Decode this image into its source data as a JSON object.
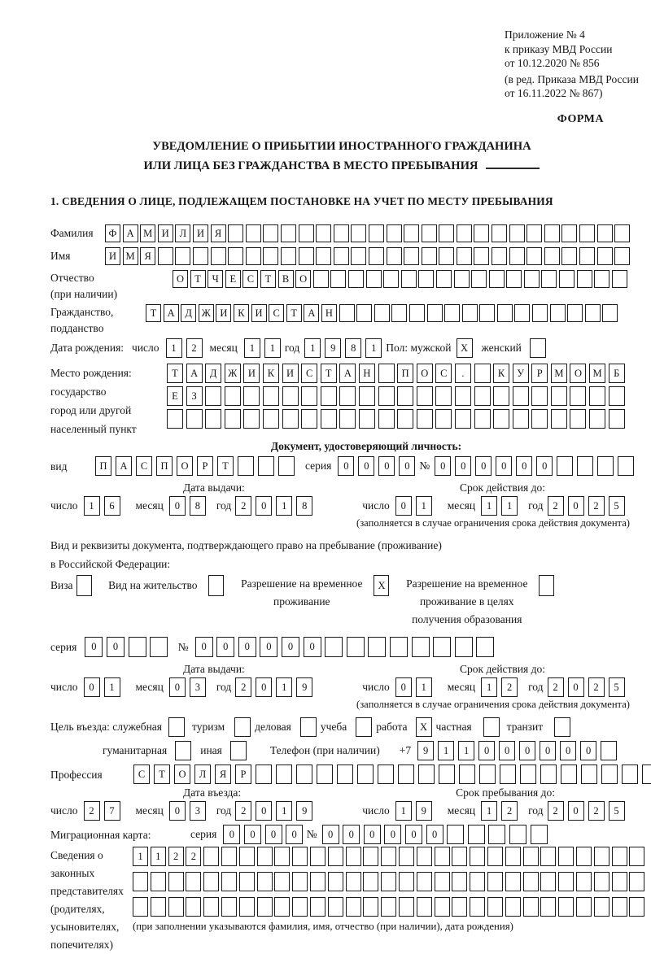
{
  "header": {
    "line1": "Приложение № 4",
    "line2": "к приказу МВД России",
    "line3": "от 10.12.2020 № 856",
    "line4": "(в ред. Приказа МВД России",
    "line5": "от 16.11.2022 № 867)",
    "forma": "ФОРМА"
  },
  "title": {
    "line1": "УВЕДОМЛЕНИЕ О ПРИБЫТИИ ИНОСТРАННОГО ГРАЖДАНИНА",
    "line2": "ИЛИ ЛИЦА БЕЗ ГРАЖДАНСТВА В МЕСТО ПРЕБЫВАНИЯ"
  },
  "section1": {
    "heading": "1. СВЕДЕНИЯ О ЛИЦЕ, ПОДЛЕЖАЩЕМ ПОСТАНОВКЕ НА УЧЕТ ПО МЕСТУ ПРЕБЫВАНИЯ"
  },
  "fields": {
    "surname": {
      "label": "Фамилия",
      "value": "ФАМИЛИЯ",
      "length": 30
    },
    "name": {
      "label": "Имя",
      "value": "ИМЯ",
      "length": 30
    },
    "patronymic": {
      "label": "Отчество",
      "label2": "(при наличии)",
      "value": "ОТЧЕСТВО",
      "length": 26
    },
    "citizenship": {
      "label": "Гражданство,",
      "label2": "подданство",
      "value": "ТАДЖИКИСТАН",
      "length": 27
    },
    "birth_date": {
      "label": "Дата рождения:",
      "day_label": "число",
      "day": {
        "value": "12",
        "length": 2
      },
      "month_label": "месяц",
      "month": {
        "value": "11",
        "length": 2
      },
      "year_label": "год",
      "year": {
        "value": "1981",
        "length": 4
      },
      "sex_label": "Пол: мужской",
      "male": {
        "value": "X",
        "length": 1
      },
      "female_label": "женский",
      "female": {
        "value": "",
        "length": 1
      }
    },
    "birth_place": {
      "label1": "Место рождения:",
      "label2": "государство",
      "label3": "город или другой",
      "label4": "населенный пункт",
      "row1": {
        "value": "ТАДЖИКИСТАН ПОС. КУРМОМБ",
        "length": 24
      },
      "row2": {
        "value": "ЕЗ",
        "length": 24
      },
      "row3": {
        "value": "",
        "length": 24
      }
    }
  },
  "identity_doc": {
    "heading": "Документ, удостоверяющий личность:",
    "kind_label": "вид",
    "kind": {
      "value": "ПАСПОРТ",
      "length": 10
    },
    "series_label": "серия",
    "series": {
      "value": "0000",
      "length": 4
    },
    "number_label": "№",
    "number": {
      "value": "000000",
      "length": 10
    },
    "issue_heading": "Дата выдачи:",
    "issue": {
      "day_label": "число",
      "day": {
        "value": "16",
        "length": 2
      },
      "month_label": "месяц",
      "month": {
        "value": "08",
        "length": 2
      },
      "year_label": "год",
      "year": {
        "value": "2018",
        "length": 4
      }
    },
    "expiry_heading": "Срок действия до:",
    "expiry": {
      "day_label": "число",
      "day": {
        "value": "01",
        "length": 2
      },
      "month_label": "месяц",
      "month": {
        "value": "11",
        "length": 2
      },
      "year_label": "год",
      "year": {
        "value": "2025",
        "length": 4
      }
    },
    "expiry_note": "(заполняется в случае ограничения срока действия документа)"
  },
  "residence_doc": {
    "line1": "Вид и реквизиты документа, подтверждающего право на пребывание (проживание)",
    "line2": "в Российской Федерации:",
    "visa_label": "Виза",
    "visa": {
      "value": "",
      "length": 1
    },
    "permit_label": "Вид на жительство",
    "permit": {
      "value": "",
      "length": 1
    },
    "temp_label1": "Разрешение на временное",
    "temp_label2": "проживание",
    "temp": {
      "value": "X",
      "length": 1
    },
    "edu_label1": "Разрешение на временное",
    "edu_label2": "проживание в целях",
    "edu_label3": "получения образования",
    "edu": {
      "value": "",
      "length": 1
    },
    "series_label": "серия",
    "series": {
      "value": "00",
      "length": 4
    },
    "number_label": "№",
    "number": {
      "value": "000000",
      "length": 14
    },
    "issue_heading": "Дата выдачи:",
    "issue": {
      "day_label": "число",
      "day": {
        "value": "01",
        "length": 2
      },
      "month_label": "месяц",
      "month": {
        "value": "03",
        "length": 2
      },
      "year_label": "год",
      "year": {
        "value": "2019",
        "length": 4
      }
    },
    "expiry_heading": "Срок действия до:",
    "expiry": {
      "day_label": "число",
      "day": {
        "value": "01",
        "length": 2
      },
      "month_label": "месяц",
      "month": {
        "value": "12",
        "length": 2
      },
      "year_label": "год",
      "year": {
        "value": "2025",
        "length": 4
      }
    },
    "expiry_note": "(заполняется в случае ограничения срока действия документа)"
  },
  "purpose": {
    "label": "Цель въезда: служебная",
    "o1": {
      "value": "",
      "length": 1
    },
    "o2_label": "туризм",
    "o2": {
      "value": "",
      "length": 1
    },
    "o3_label": "деловая",
    "o3": {
      "value": "",
      "length": 1
    },
    "o4_label": "учеба",
    "o4": {
      "value": "",
      "length": 1
    },
    "o5_label": "работа",
    "o5": {
      "value": "X",
      "length": 1
    },
    "o6_label": "частная",
    "o6": {
      "value": "",
      "length": 1
    },
    "o7_label": "транзит",
    "o7": {
      "value": "",
      "length": 1
    },
    "o8_label": "гуманитарная",
    "o8": {
      "value": "",
      "length": 1
    },
    "o9_label": "иная",
    "o9": {
      "value": "",
      "length": 1
    },
    "phone_label": "Телефон (при наличии)",
    "phone_prefix": "+7",
    "phone": {
      "value": "911000000",
      "length": 10
    }
  },
  "profession": {
    "label": "Профессия",
    "value": "СТОЛЯР",
    "length": 28
  },
  "entry": {
    "issue_heading": "Дата въезда:",
    "issue": {
      "day_label": "число",
      "day": {
        "value": "27",
        "length": 2
      },
      "month_label": "месяц",
      "month": {
        "value": "03",
        "length": 2
      },
      "year_label": "год",
      "year": {
        "value": "2019",
        "length": 4
      }
    },
    "stay_heading": "Срок пребывания до:",
    "stay": {
      "day_label": "число",
      "day": {
        "value": "19",
        "length": 2
      },
      "month_label": "месяц",
      "month": {
        "value": "12",
        "length": 2
      },
      "year_label": "год",
      "year": {
        "value": "2025",
        "length": 4
      }
    }
  },
  "migration_card": {
    "label": "Миграционная карта:",
    "series_label": "серия",
    "series": {
      "value": "0000",
      "length": 4
    },
    "number_label": "№",
    "number": {
      "value": "000000",
      "length": 11
    }
  },
  "legal_reps": {
    "label1": "Сведения о",
    "label2": "законных",
    "label3": "представителях",
    "label4": "(родителях,",
    "label5": "усыновителях,",
    "label6": "попечителях)",
    "row1": {
      "value": "1122",
      "length": 29
    },
    "row2": {
      "value": "",
      "length": 29
    },
    "row3": {
      "value": "",
      "length": 29
    },
    "note": "(при заполнении указываются фамилия, имя, отчество (при наличии), дата рождения)"
  }
}
